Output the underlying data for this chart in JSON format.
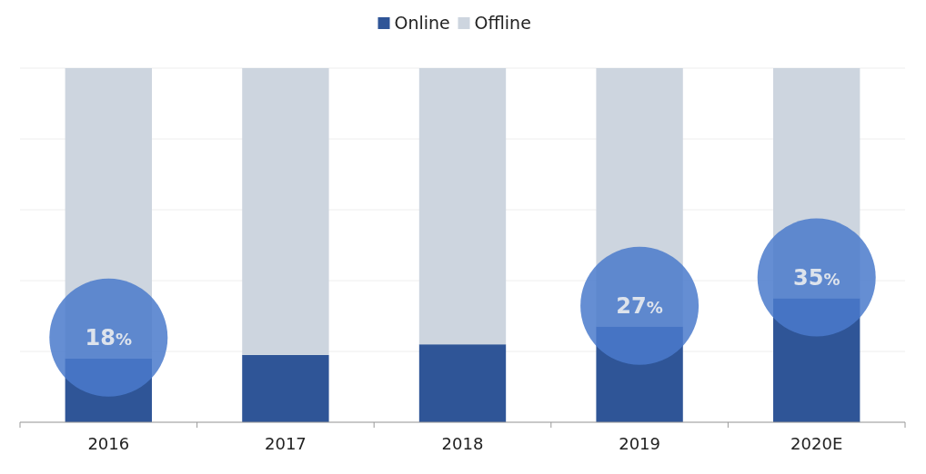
{
  "chart_data": {
    "type": "bar",
    "stacked": true,
    "categories": [
      "2016",
      "2017",
      "2018",
      "2019",
      "2020E"
    ],
    "series": [
      {
        "name": "Online",
        "color": "#2f5597",
        "values": [
          18,
          19,
          22,
          27,
          35
        ],
        "value_labels": [
          "18%",
          null,
          null,
          "27%",
          "35%"
        ]
      },
      {
        "name": "Offline",
        "color": "#cdd5df",
        "values": [
          82,
          81,
          78,
          73,
          65
        ]
      }
    ],
    "ylim": [
      0,
      100
    ],
    "yticks": [
      {
        "value": 0,
        "label": null
      },
      {
        "value": 20,
        "label": null
      },
      {
        "value": 40,
        "label": null
      },
      {
        "value": 60,
        "label": null
      },
      {
        "value": 80,
        "label": null
      },
      {
        "value": 100,
        "label": null
      }
    ],
    "grid": "y",
    "tick_labels": "x",
    "legend": "top"
  }
}
